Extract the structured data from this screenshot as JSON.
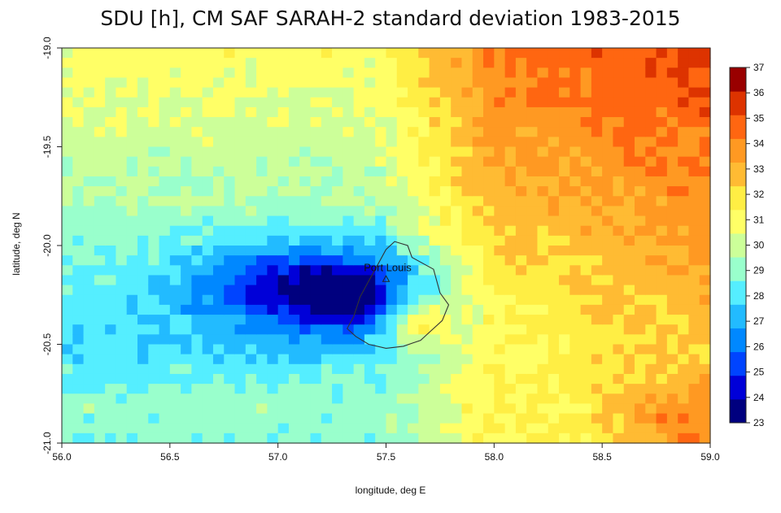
{
  "title": "SDU [h], CM SAF SARAH-2 standard deviation 1983-2015",
  "chart_data": {
    "type": "heatmap",
    "title": "SDU [h], CM SAF SARAH-2 standard deviation 1983-2015",
    "xlabel": "longitude, deg E",
    "ylabel": "latitude, deg N",
    "xlim": [
      56.0,
      59.0
    ],
    "ylim": [
      -21.0,
      -19.0
    ],
    "x_ticks": [
      "56.0",
      "56.5",
      "57.0",
      "57.5",
      "58.0",
      "58.5",
      "59.0"
    ],
    "y_ticks": [
      "-19.0",
      "-19.5",
      "-20.0",
      "-20.5",
      "-21.0"
    ],
    "colorbar": {
      "min": 23,
      "max": 37,
      "ticks": [
        "23",
        "24",
        "25",
        "26",
        "27",
        "28",
        "29",
        "30",
        "31",
        "32",
        "33",
        "34",
        "35",
        "36",
        "37"
      ],
      "colors": [
        "#00007f",
        "#0000d8",
        "#0044ff",
        "#0088ff",
        "#22bbff",
        "#55eeff",
        "#99ffcc",
        "#ccff99",
        "#ffff66",
        "#ffee44",
        "#ffbb33",
        "#ff9922",
        "#ff6611",
        "#dd3300",
        "#990000"
      ]
    },
    "annotations": [
      {
        "label": "Port Louis",
        "lon": 57.5,
        "lat": -20.17
      }
    ],
    "values_description": "gridded field; lowest (~23-24 h) west of Mauritius near 57.3E -20.3N, higher (~33-35 h) east/southeast"
  }
}
